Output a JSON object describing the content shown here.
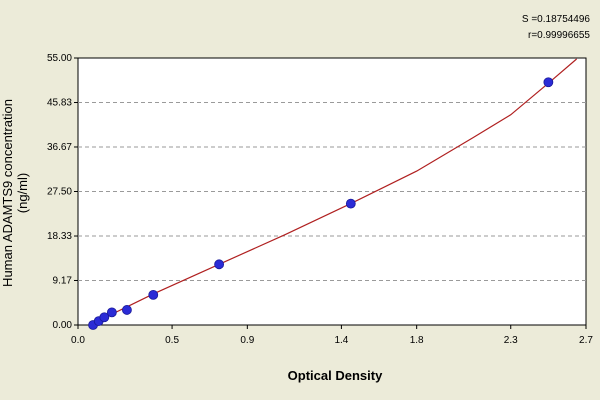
{
  "stats": {
    "s": "S =0.18754496",
    "r": "r=0.99996655"
  },
  "chart_data": {
    "type": "scatter",
    "title": "",
    "xlabel": "Optical Density",
    "ylabel": "Human ADAMTS9 concentration (ng/ml)",
    "xlim": [
      0,
      2.7
    ],
    "ylim": [
      0,
      55
    ],
    "x_ticks": [
      0.0,
      0.5,
      0.9,
      1.4,
      1.8,
      2.3,
      2.7
    ],
    "x_tick_labels": [
      "0.0",
      "0.5",
      "0.9",
      "1.4",
      "1.8",
      "2.3",
      "2.7"
    ],
    "y_ticks": [
      0,
      9.17,
      18.33,
      27.5,
      36.67,
      45.83,
      55
    ],
    "y_tick_labels": [
      "0.00",
      "9.17",
      "18.33",
      "27.50",
      "36.67",
      "45.83",
      "55.00"
    ],
    "grid": true,
    "series": [
      {
        "points": [
          {
            "x": 0.08,
            "y": 0.0
          },
          {
            "x": 0.11,
            "y": 0.8
          },
          {
            "x": 0.14,
            "y": 1.6
          },
          {
            "x": 0.18,
            "y": 2.6
          },
          {
            "x": 0.26,
            "y": 3.1
          },
          {
            "x": 0.4,
            "y": 6.2
          },
          {
            "x": 0.75,
            "y": 12.5
          },
          {
            "x": 1.45,
            "y": 25.0
          },
          {
            "x": 2.5,
            "y": 50.0
          }
        ],
        "color": "#2b2bd6"
      },
      {
        "type": "line",
        "color": "#b02020",
        "points": [
          {
            "x": 0.06,
            "y": -0.2
          },
          {
            "x": 0.2,
            "y": 2.6
          },
          {
            "x": 0.4,
            "y": 6.4
          },
          {
            "x": 0.75,
            "y": 12.5
          },
          {
            "x": 1.1,
            "y": 18.6
          },
          {
            "x": 1.45,
            "y": 25.0
          },
          {
            "x": 1.8,
            "y": 31.7
          },
          {
            "x": 2.1,
            "y": 38.6
          },
          {
            "x": 2.3,
            "y": 43.3
          },
          {
            "x": 2.5,
            "y": 49.8
          },
          {
            "x": 2.65,
            "y": 54.8
          }
        ]
      }
    ]
  }
}
